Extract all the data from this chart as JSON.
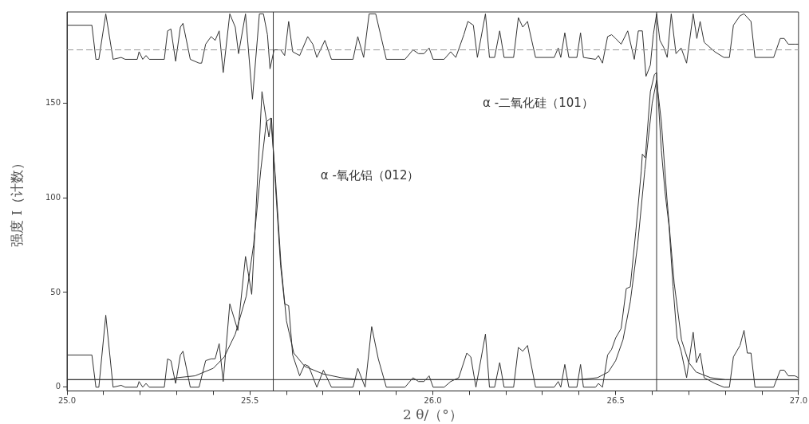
{
  "chart_data": {
    "type": "line",
    "xlabel": "2 θ/（°）",
    "ylabel": "强度 I（计数）",
    "xlim": [
      25.0,
      27.0
    ],
    "ylim": [
      -2,
      198
    ],
    "xticks": [
      {
        "value": 25.0,
        "label": "25.0"
      },
      {
        "value": 25.1,
        "label": null
      },
      {
        "value": 25.2,
        "label": null
      },
      {
        "value": 25.3,
        "label": null
      },
      {
        "value": 25.4,
        "label": null
      },
      {
        "value": 25.5,
        "label": "25.5"
      },
      {
        "value": 25.6,
        "label": null
      },
      {
        "value": 25.7,
        "label": null
      },
      {
        "value": 25.8,
        "label": null
      },
      {
        "value": 25.9,
        "label": null
      },
      {
        "value": 26.0,
        "label": "26.0"
      },
      {
        "value": 26.1,
        "label": null
      },
      {
        "value": 26.2,
        "label": null
      },
      {
        "value": 26.3,
        "label": null
      },
      {
        "value": 26.4,
        "label": null
      },
      {
        "value": 26.5,
        "label": "26.5"
      },
      {
        "value": 26.6,
        "label": null
      },
      {
        "value": 26.7,
        "label": null
      },
      {
        "value": 26.8,
        "label": null
      },
      {
        "value": 26.9,
        "label": null
      },
      {
        "value": 27.0,
        "label": "27.0"
      }
    ],
    "yticks": [
      0,
      50,
      100,
      150
    ],
    "series": [
      {
        "color": "#333333",
        "x": [
          25.0,
          25.068,
          25.079,
          25.087,
          25.106,
          25.126,
          25.148,
          25.159,
          25.192,
          25.197,
          25.207,
          25.216,
          25.225,
          25.266,
          25.275,
          25.284,
          25.297,
          25.31,
          25.317,
          25.337,
          25.361,
          25.379,
          25.394,
          25.405,
          25.416,
          25.427,
          25.445,
          25.467,
          25.488,
          25.505,
          25.533,
          25.552,
          25.559,
          25.57,
          25.584,
          25.595,
          25.606,
          25.617,
          25.636,
          25.65,
          25.661,
          25.683,
          25.701,
          25.723,
          25.782,
          25.795,
          25.815,
          25.833,
          25.851,
          25.873,
          25.924,
          25.946,
          25.961,
          25.976,
          25.99,
          26.001,
          26.031,
          26.049,
          26.071,
          26.093,
          26.104,
          26.118,
          26.144,
          26.155,
          26.169,
          26.183,
          26.195,
          26.221,
          26.234,
          26.246,
          26.259,
          26.281,
          26.332,
          26.343,
          26.35,
          26.361,
          26.372,
          26.394,
          26.404,
          26.412,
          26.445,
          26.453,
          26.464,
          26.478,
          26.489,
          26.5,
          26.515,
          26.529,
          26.54,
          26.555,
          26.57,
          26.573,
          26.581,
          26.595,
          26.606,
          26.612,
          26.625,
          26.635,
          26.646,
          26.657,
          26.668,
          26.679,
          26.694,
          26.712,
          26.721,
          26.731,
          26.742,
          26.771,
          26.796,
          26.811,
          26.822,
          26.84,
          26.851,
          26.86,
          26.87,
          26.881,
          26.932,
          26.95,
          26.961,
          26.972,
          26.99,
          27.0
        ],
        "values": [
          17,
          17,
          0,
          0,
          38,
          0,
          1,
          0,
          0,
          3,
          0,
          2,
          0,
          0,
          15,
          14,
          2,
          17,
          19,
          0,
          0,
          14,
          15,
          15,
          23,
          3,
          44,
          30,
          69,
          49,
          156,
          132,
          142,
          106,
          64,
          44,
          43,
          17,
          6,
          12,
          11,
          0,
          9,
          0,
          0,
          10,
          0,
          32,
          15,
          0,
          0,
          5,
          3,
          3,
          6,
          0,
          0,
          3,
          5,
          18,
          16,
          0,
          28,
          0,
          0,
          13,
          0,
          0,
          21,
          19,
          22,
          0,
          0,
          3,
          0,
          12,
          0,
          0,
          12,
          0,
          0,
          2,
          0,
          17,
          20,
          26,
          31,
          52,
          53,
          82,
          114,
          123,
          121,
          156,
          165,
          166,
          125,
          103,
          85,
          53,
          26,
          19,
          5,
          29,
          13,
          18,
          5,
          2,
          0,
          0,
          16,
          22,
          30,
          18,
          18,
          0,
          0,
          9,
          9,
          6,
          6,
          5
        ]
      },
      {
        "color": "#333333",
        "x": [
          25.0,
          25.28,
          25.3,
          25.35,
          25.4,
          25.43,
          25.46,
          25.49,
          25.51,
          25.53,
          25.545,
          25.557,
          25.57,
          25.585,
          25.6,
          25.62,
          25.65,
          25.7,
          25.75,
          25.8,
          26.4,
          26.45,
          26.48,
          26.5,
          26.52,
          26.54,
          26.56,
          26.58,
          26.6,
          26.612,
          26.625,
          26.64,
          26.66,
          26.68,
          26.7,
          26.72,
          26.76,
          26.8,
          27.0
        ],
        "values": [
          4,
          4,
          5,
          6,
          10,
          16,
          28,
          48,
          75,
          115,
          140,
          142,
          110,
          65,
          35,
          18,
          11,
          7,
          5,
          4,
          4,
          5,
          8,
          14,
          25,
          45,
          75,
          115,
          150,
          162,
          140,
          100,
          55,
          25,
          13,
          8,
          5,
          4,
          4
        ]
      },
      {
        "color": "#333333",
        "x": [
          25.0,
          25.068,
          25.079,
          25.087,
          25.106,
          25.126,
          25.148,
          25.159,
          25.192,
          25.197,
          25.207,
          25.216,
          25.225,
          25.266,
          25.275,
          25.284,
          25.297,
          25.31,
          25.317,
          25.337,
          25.361,
          25.368,
          25.379,
          25.394,
          25.405,
          25.416,
          25.427,
          25.445,
          25.46,
          25.469,
          25.488,
          25.507,
          25.526,
          25.537,
          25.548,
          25.555,
          25.566,
          25.584,
          25.595,
          25.606,
          25.617,
          25.636,
          25.658,
          25.672,
          25.683,
          25.705,
          25.723,
          25.782,
          25.795,
          25.811,
          25.826,
          25.844,
          25.873,
          25.924,
          25.946,
          25.961,
          25.976,
          25.99,
          26.001,
          26.031,
          26.049,
          26.063,
          26.085,
          26.096,
          26.111,
          26.122,
          26.144,
          26.155,
          26.169,
          26.183,
          26.195,
          26.221,
          26.234,
          26.246,
          26.259,
          26.281,
          26.332,
          26.343,
          26.35,
          26.361,
          26.372,
          26.394,
          26.404,
          26.412,
          26.445,
          26.453,
          26.464,
          26.478,
          26.489,
          26.5,
          26.515,
          26.533,
          26.551,
          26.562,
          26.573,
          26.583,
          26.595,
          26.603,
          26.612,
          26.621,
          26.632,
          26.641,
          26.652,
          26.665,
          26.679,
          26.694,
          26.712,
          26.722,
          26.731,
          26.742,
          26.771,
          26.796,
          26.811,
          26.822,
          26.84,
          26.851,
          26.87,
          26.881,
          26.932,
          26.95,
          26.961,
          26.972,
          26.99,
          27.0
        ],
        "values": [
          191,
          191,
          173,
          173,
          197,
          173,
          174,
          173,
          173,
          177,
          173,
          175,
          173,
          173,
          188,
          189,
          172,
          190,
          192,
          173,
          171,
          171,
          181,
          185,
          183,
          188,
          166,
          197,
          190,
          176,
          197,
          152,
          197,
          197,
          186,
          168,
          178,
          178,
          175,
          193,
          177,
          175,
          185,
          181,
          174,
          183,
          173,
          173,
          185,
          174,
          197,
          197,
          173,
          173,
          178,
          176,
          176,
          179,
          173,
          173,
          177,
          174,
          186,
          193,
          191,
          174,
          197,
          174,
          174,
          188,
          174,
          174,
          195,
          190,
          193,
          174,
          174,
          179,
          174,
          187,
          174,
          174,
          187,
          174,
          173,
          175,
          171,
          185,
          186,
          184,
          181,
          188,
          173,
          188,
          188,
          164,
          170,
          186,
          197,
          183,
          179,
          174,
          197,
          176,
          179,
          171,
          197,
          184,
          193,
          182,
          177,
          174,
          174,
          191,
          196,
          197,
          193,
          174,
          174,
          184,
          184,
          181,
          181,
          181
        ]
      }
    ],
    "ref_lines": [
      {
        "axis": "y",
        "value": 4,
        "color": "#333333",
        "line_style": "solid"
      },
      {
        "axis": "y",
        "value": 178,
        "color": "#999999",
        "line_style": "dashed"
      },
      {
        "axis": "x",
        "value": 25.564,
        "color": "#333333",
        "line_style": "solid"
      },
      {
        "axis": "x",
        "value": 26.612,
        "color": "#333333",
        "line_style": "solid"
      }
    ],
    "annotations": [
      "α -氧化铝（012）",
      "α -二氧化硅（101）"
    ]
  }
}
